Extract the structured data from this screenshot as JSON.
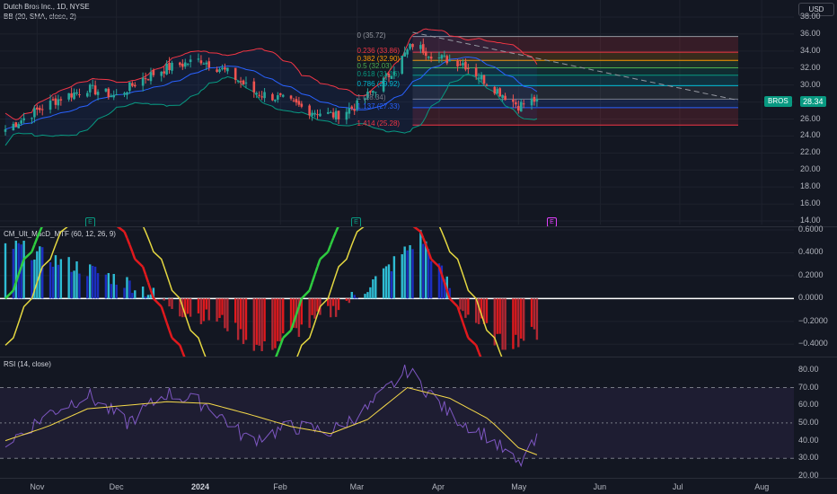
{
  "header": {
    "symbol_line": "Dutch Bros Inc., 1D, NYSE",
    "indicator_line": "BB (20, SMA, close, 2)",
    "currency_button": "USD"
  },
  "colors": {
    "background": "#131722",
    "up": "#26a69a",
    "down": "#ef5350",
    "bb_upper": "#f23645",
    "bb_basis": "#2962ff",
    "bb_lower": "#089981",
    "macd_up": "#2ebcd4",
    "macd_mid_blue": "#1c2ec0",
    "macd_down": "#b22833",
    "macd_line_green": "#2ecc40",
    "macd_line_red": "#e0191d",
    "signal_yellow": "#e5d841",
    "rsi_line": "#7e57c2",
    "rsi_ma": "#f5d94a"
  },
  "price_axis": {
    "ticks": [
      "38.00",
      "36.00",
      "34.00",
      "32.00",
      "30.00",
      "28.00",
      "26.00",
      "24.00",
      "22.00",
      "20.00",
      "18.00",
      "16.00",
      "14.00"
    ],
    "last_price_label": "BROS",
    "last_price": "28.34"
  },
  "fib_levels": [
    {
      "label": "0 (35.72)",
      "price": 35.72,
      "color": "#9598a1"
    },
    {
      "label": "0.236 (33.86)",
      "price": 33.86,
      "color": "#f23645"
    },
    {
      "label": "0.382 (32.90)",
      "price": 32.9,
      "color": "#ff9800"
    },
    {
      "label": "0.5 (32.03)",
      "price": 32.03,
      "color": "#4caf50"
    },
    {
      "label": "0.618 (31.16)",
      "price": 31.16,
      "color": "#089981"
    },
    {
      "label": "0.786 (29.92)",
      "price": 29.92,
      "color": "#00bcd4"
    },
    {
      "label": "1 (28.34)",
      "price": 28.34,
      "color": "#787b86"
    },
    {
      "label": "1.137 (27.33)",
      "price": 27.33,
      "color": "#2962ff"
    },
    {
      "label": "1.414 (25.28)",
      "price": 25.28,
      "color": "#f23645"
    }
  ],
  "earnings_badges": [
    "E",
    "E",
    "E"
  ],
  "macd": {
    "title": "CM_Ult_MacD_MTF (60, 12, 26, 9)",
    "ticks": [
      "0.6000",
      "0.4000",
      "0.2000",
      "0.0000",
      "−0.2000",
      "−0.4000"
    ]
  },
  "rsi": {
    "title": "RSI (14, close)",
    "ticks": [
      "80.00",
      "70.00",
      "60.00",
      "50.00",
      "40.00",
      "30.00",
      "20.00"
    ]
  },
  "time_axis": [
    "Nov",
    "Dec",
    "2024",
    "Feb",
    "Mar",
    "Apr",
    "May",
    "Jun",
    "Jul",
    "Aug"
  ],
  "chart_data": [
    {
      "type": "line",
      "title": "Dutch Bros Inc., 1D, NYSE",
      "x_range": [
        "2023-10-20",
        "2024-08-05"
      ],
      "ylim": [
        14,
        38
      ],
      "series": [
        {
          "name": "close",
          "x": [
            "2023-10-20",
            "2023-11-01",
            "2023-11-10",
            "2023-11-20",
            "2023-12-01",
            "2023-12-11",
            "2023-12-20",
            "2024-01-02",
            "2024-01-12",
            "2024-01-22",
            "2024-02-01",
            "2024-02-12",
            "2024-02-22",
            "2024-03-01",
            "2024-03-12",
            "2024-03-22",
            "2024-04-01",
            "2024-04-10",
            "2024-04-22",
            "2024-05-01",
            "2024-05-08"
          ],
          "values": [
            24.8,
            27.0,
            28.5,
            29.6,
            28.7,
            30.8,
            32.0,
            33.0,
            31.5,
            29.2,
            28.4,
            27.0,
            26.4,
            27.6,
            30.8,
            34.8,
            33.2,
            32.6,
            29.6,
            27.6,
            28.34
          ]
        },
        {
          "name": "BB (20, SMA, close, 2)",
          "x": [
            "2023-10-20",
            "2023-11-15",
            "2023-12-15",
            "2024-01-15",
            "2024-02-15",
            "2024-03-15",
            "2024-04-10",
            "2024-05-08"
          ],
          "values": [
            25.4,
            27.5,
            30.2,
            31.2,
            27.8,
            30.5,
            33.2,
            29.4
          ]
        }
      ]
    },
    {
      "type": "bar",
      "title": "CM_Ult_MacD_MTF (60, 12, 26, 9)",
      "ylim": [
        -0.5,
        0.6
      ],
      "x": [
        "2023-10-25",
        "2023-11-10",
        "2023-11-25",
        "2023-12-10",
        "2023-12-25",
        "2024-01-10",
        "2024-01-25",
        "2024-02-10",
        "2024-02-25",
        "2024-03-10",
        "2024-03-25",
        "2024-04-10",
        "2024-04-25",
        "2024-05-08"
      ],
      "values": [
        0.45,
        0.32,
        0.22,
        0.1,
        -0.1,
        -0.2,
        -0.45,
        -0.25,
        -0.05,
        0.2,
        0.55,
        -0.1,
        -0.4,
        -0.3
      ]
    },
    {
      "type": "line",
      "title": "RSI (14, close)",
      "ylim": [
        20,
        85
      ],
      "x": [
        "2023-10-20",
        "2023-11-05",
        "2023-11-20",
        "2023-12-05",
        "2023-12-20",
        "2024-01-05",
        "2024-01-20",
        "2024-02-05",
        "2024-02-20",
        "2024-03-05",
        "2024-03-20",
        "2024-04-05",
        "2024-04-20",
        "2024-05-01",
        "2024-05-08"
      ],
      "series": [
        {
          "name": "RSI",
          "values": [
            38,
            55,
            66,
            50,
            67,
            60,
            40,
            48,
            45,
            58,
            80,
            55,
            42,
            26,
            40
          ]
        },
        {
          "name": "MA",
          "values": [
            40,
            48,
            58,
            60,
            62,
            61,
            55,
            48,
            44,
            52,
            70,
            64,
            52,
            36,
            32
          ]
        }
      ],
      "bands": [
        30,
        50,
        70
      ]
    }
  ]
}
